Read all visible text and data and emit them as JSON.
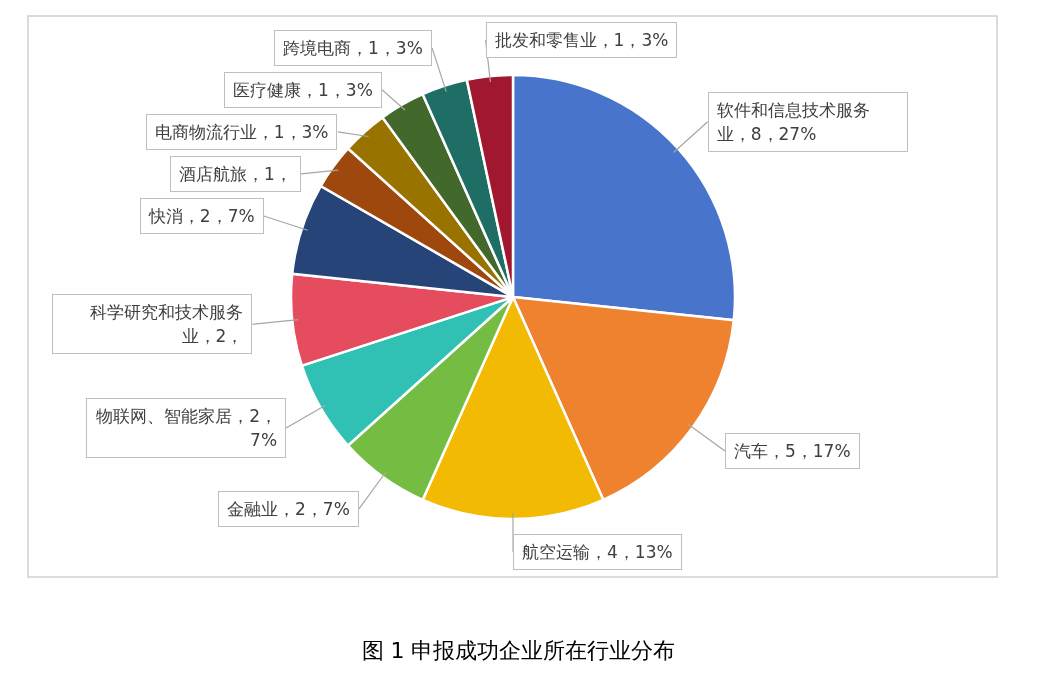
{
  "chart_data": {
    "type": "pie",
    "title": "图 1  申报成功企业所在行业分布",
    "categories": [
      "软件和信息技术服务业",
      "汽车",
      "航空运输",
      "金融业",
      "物联网、智能家居",
      "科学研究和技术服务业",
      "快消",
      "酒店航旅",
      "电商物流行业",
      "医疗健康",
      "跨境电商",
      "批发和零售业"
    ],
    "values": [
      8,
      5,
      4,
      2,
      2,
      2,
      2,
      1,
      1,
      1,
      1,
      1
    ],
    "value_labels": [
      "8，27%",
      "5，17%",
      "4，13%",
      "2，7%",
      "2，7%",
      "2，",
      "2，7%",
      "1，",
      "1，3%",
      "1，3%",
      "1，3%",
      "1，3%"
    ],
    "colors": [
      "#4874cb",
      "#ee822f",
      "#f2ba02",
      "#75bd42",
      "#30c0b4",
      "#e54c5e",
      "#264478",
      "#9e480e",
      "#997300",
      "#43682b",
      "#1f6e66",
      "#a0172f"
    ]
  }
}
